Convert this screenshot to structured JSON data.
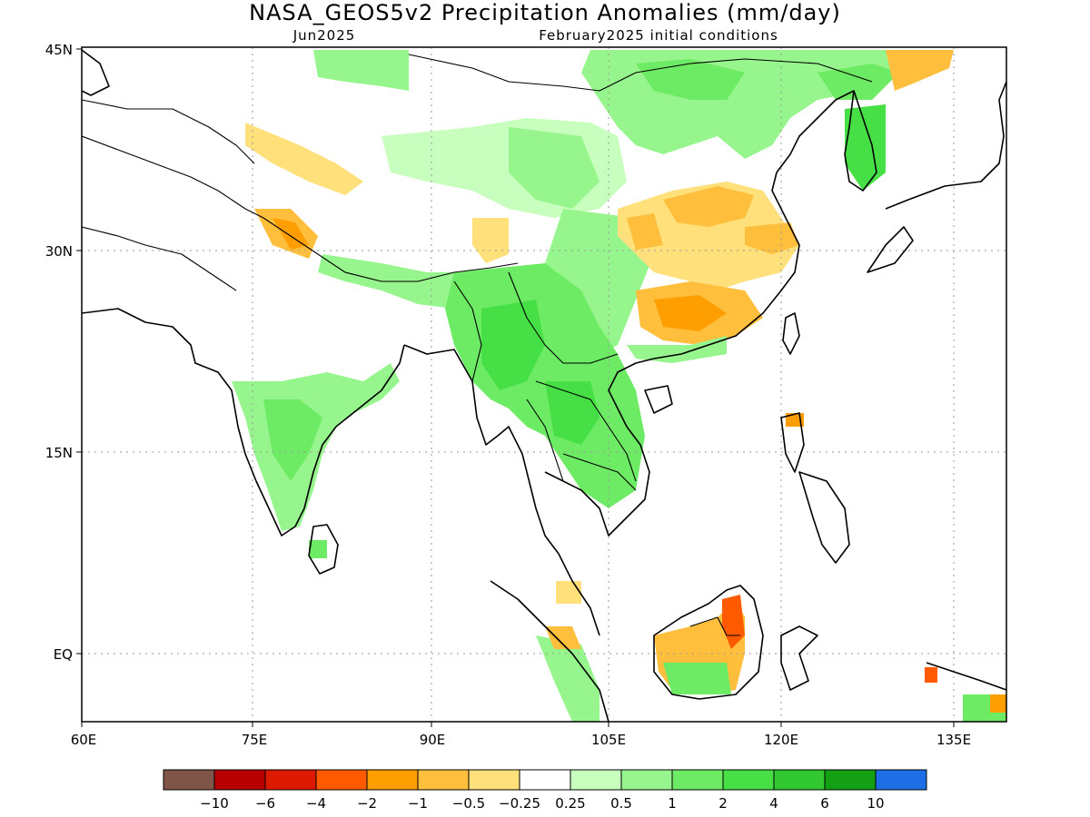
{
  "map": {
    "title": "NASA_GEOS5v2 Precipitation Anomalies (mm/day)",
    "subtitle_left": "Jun2025",
    "subtitle_right": "February2025 initial conditions",
    "lon_labels": [
      "60E",
      "75E",
      "90E",
      "105E",
      "120E",
      "135E"
    ],
    "lat_labels": [
      "45N",
      "30N",
      "15N",
      "EQ"
    ],
    "extent": {
      "lon_min": 60,
      "lon_max": 142,
      "lat_min": -5,
      "lat_max": 45
    }
  },
  "colorbar": {
    "colors": [
      "#7f5548",
      "#b80000",
      "#dc1a00",
      "#ff5a00",
      "#ff9e00",
      "#ffbe3c",
      "#ffe07a",
      "#ffffff",
      "#c8ffbe",
      "#96f58c",
      "#6eeb64",
      "#46e046",
      "#32c832",
      "#14a014",
      "#1e6ee6"
    ],
    "labels": [
      "-10",
      "-6",
      "-4",
      "-2",
      "-1",
      "-0.5",
      "-0.25",
      "0.25",
      "0.5",
      "1",
      "2",
      "4",
      "6",
      "10"
    ]
  },
  "regions": [
    {
      "name": "green-mongolia",
      "color": "#96f58c"
    },
    {
      "name": "orange-south-china",
      "color": "#ffbe3c"
    }
  ]
}
